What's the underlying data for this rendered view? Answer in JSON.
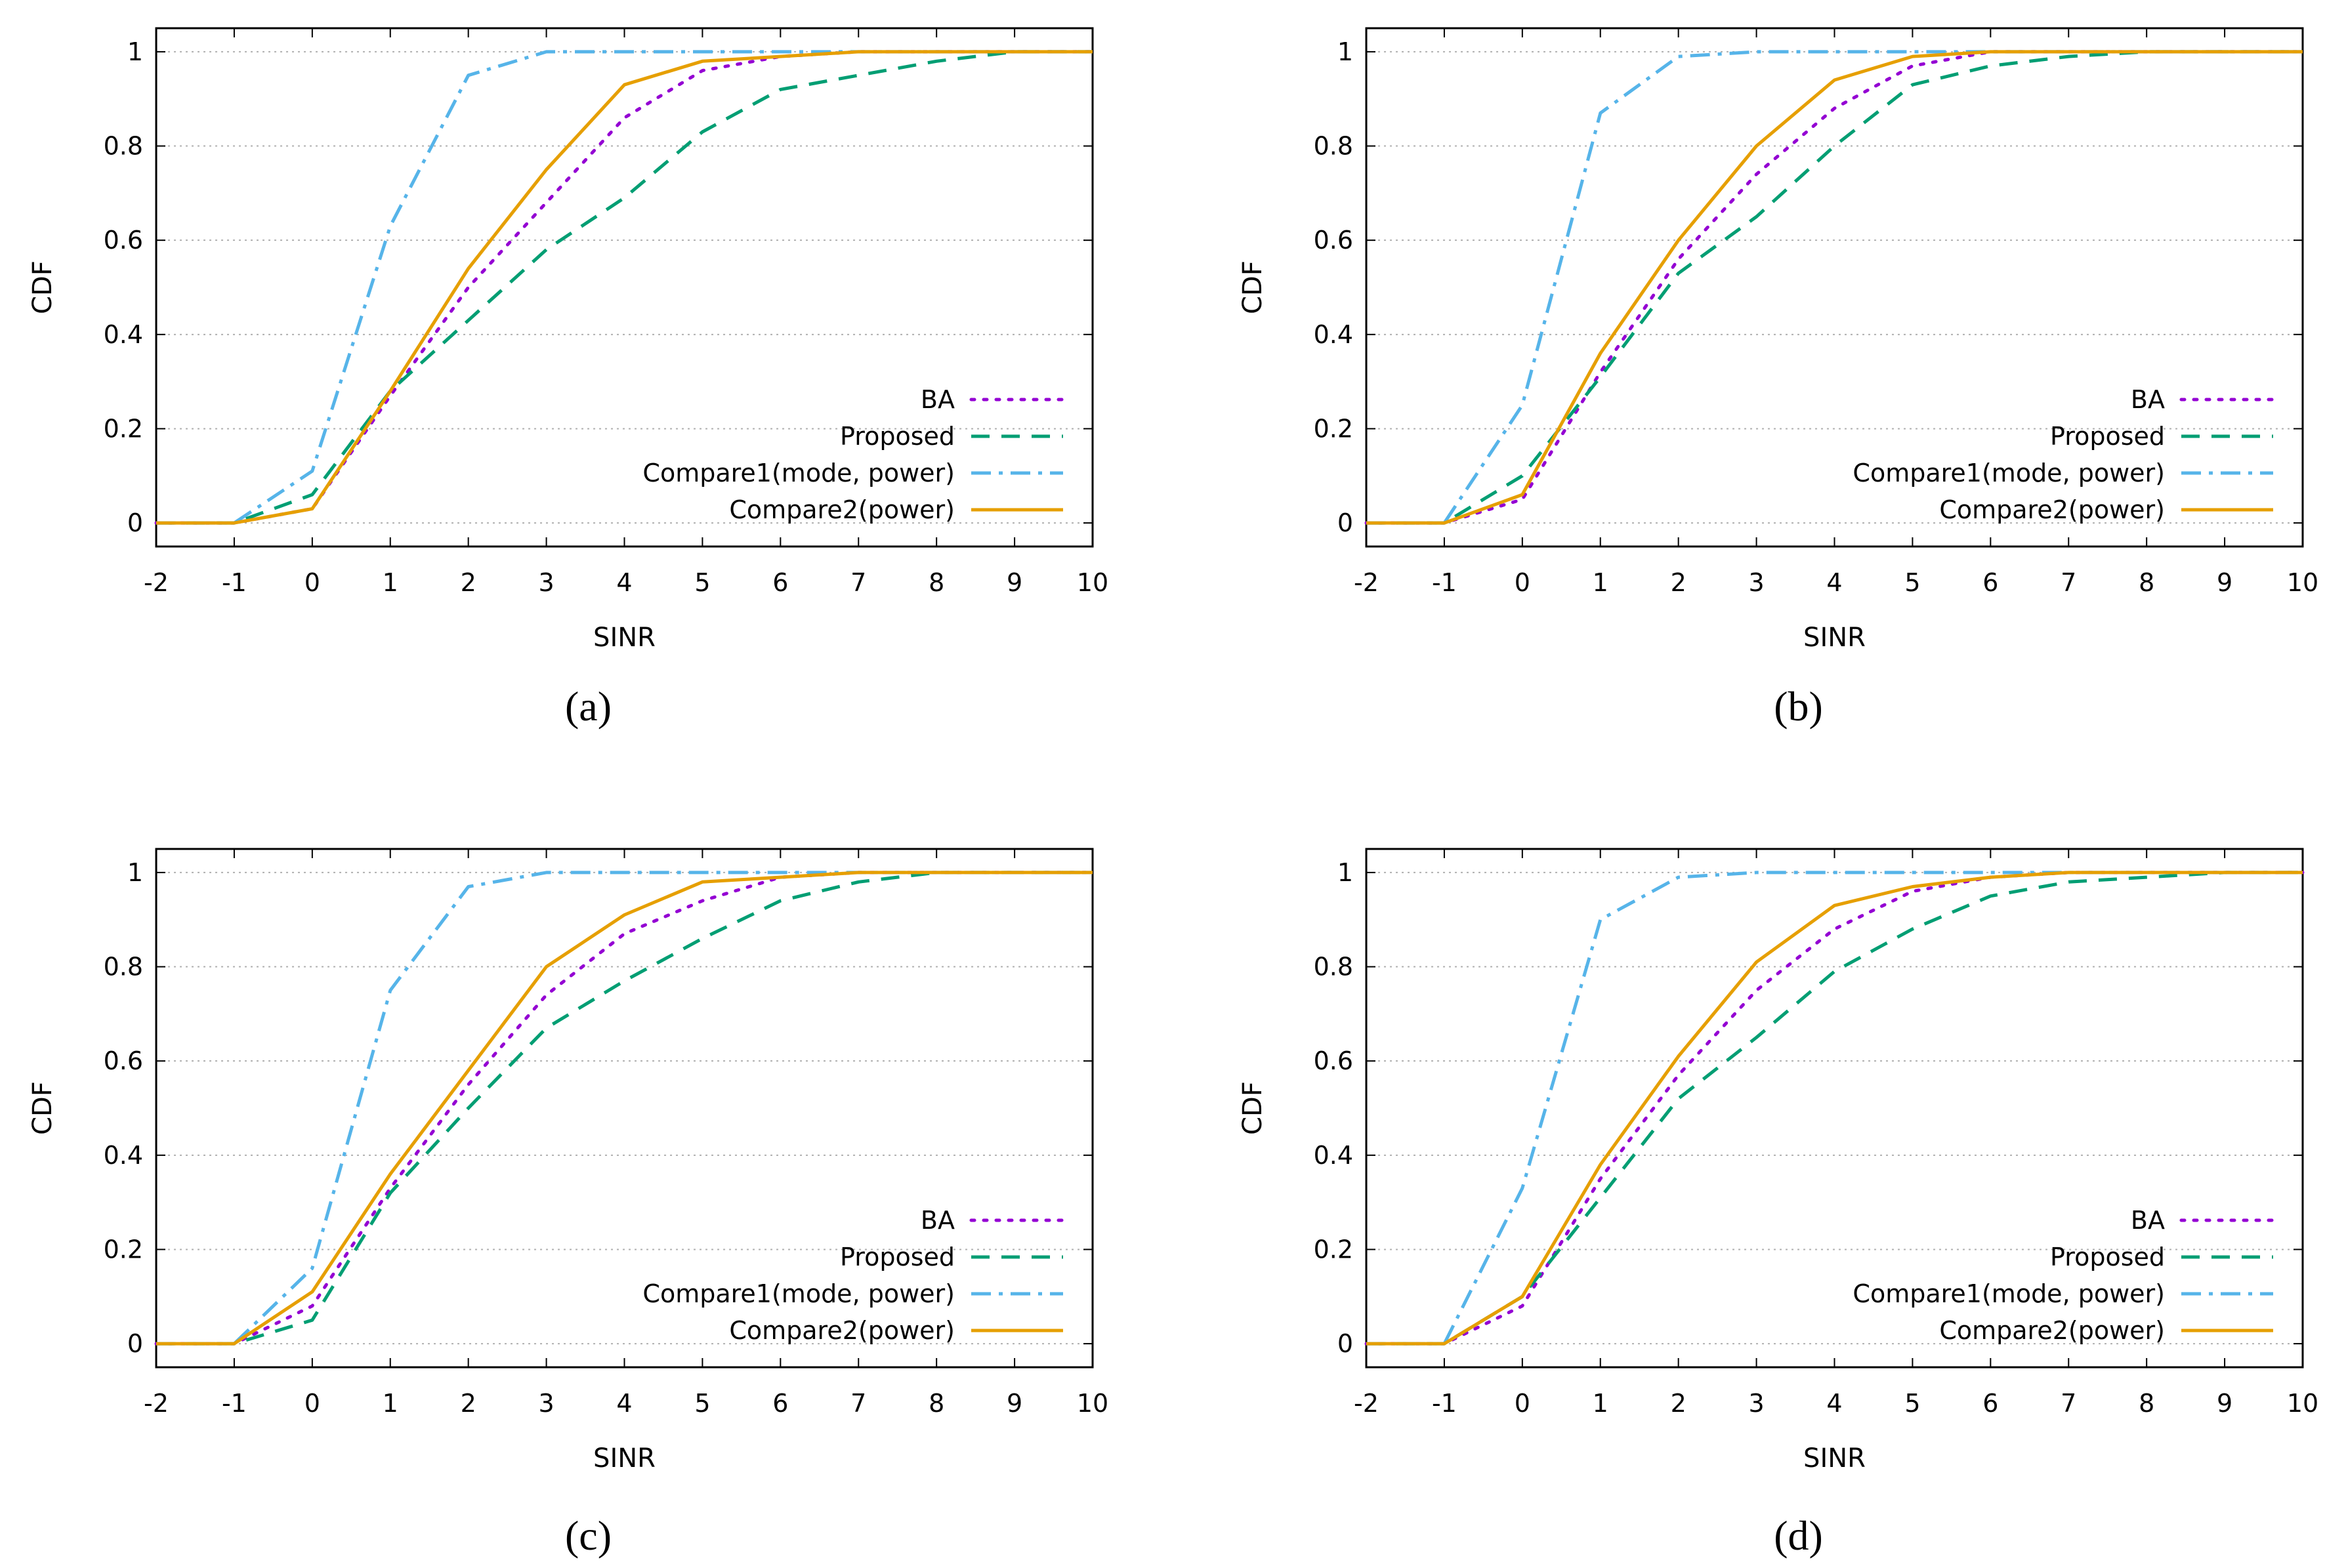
{
  "chart_data": [
    {
      "panel": "a",
      "caption": "(a)",
      "type": "line",
      "xlabel": "SINR",
      "ylabel": "CDF",
      "xlim": [
        -2,
        10
      ],
      "ylim": [
        -0.05,
        1.05
      ],
      "xticks": [
        "-2",
        "-1",
        "0",
        "1",
        "2",
        "3",
        "4",
        "5",
        "6",
        "7",
        "8",
        "9",
        "10"
      ],
      "yticks": [
        "0",
        "0.2",
        "0.4",
        "0.6",
        "0.8",
        "1"
      ],
      "grid": true,
      "legend": "bottom-right",
      "x": [
        -2,
        -1,
        0,
        1,
        2,
        3,
        4,
        5,
        6,
        7,
        8,
        9,
        10
      ],
      "series": [
        {
          "name": "BA",
          "values": [
            0,
            0,
            0.03,
            0.27,
            0.5,
            0.68,
            0.86,
            0.96,
            0.99,
            1,
            1,
            1,
            1
          ]
        },
        {
          "name": "Proposed",
          "values": [
            0,
            0,
            0.06,
            0.28,
            0.43,
            0.58,
            0.69,
            0.83,
            0.92,
            0.95,
            0.98,
            1,
            1
          ]
        },
        {
          "name": "Compare1(mode, power)",
          "values": [
            0,
            0,
            0.11,
            0.63,
            0.95,
            1,
            1,
            1,
            1,
            1,
            1,
            1,
            1
          ]
        },
        {
          "name": "Compare2(power)",
          "values": [
            0,
            0,
            0.03,
            0.28,
            0.54,
            0.75,
            0.93,
            0.98,
            0.99,
            1,
            1,
            1,
            1
          ]
        }
      ]
    },
    {
      "panel": "b",
      "caption": "(b)",
      "type": "line",
      "xlabel": "SINR",
      "ylabel": "CDF",
      "xlim": [
        -2,
        10
      ],
      "ylim": [
        -0.05,
        1.05
      ],
      "xticks": [
        "-2",
        "-1",
        "0",
        "1",
        "2",
        "3",
        "4",
        "5",
        "6",
        "7",
        "8",
        "9",
        "10"
      ],
      "yticks": [
        "0",
        "0.2",
        "0.4",
        "0.6",
        "0.8",
        "1"
      ],
      "grid": true,
      "legend": "bottom-right",
      "x": [
        -2,
        -1,
        0,
        1,
        2,
        3,
        4,
        5,
        6,
        7,
        8,
        9,
        10
      ],
      "series": [
        {
          "name": "BA",
          "values": [
            0,
            0,
            0.05,
            0.32,
            0.56,
            0.74,
            0.88,
            0.97,
            1,
            1,
            1,
            1,
            1
          ]
        },
        {
          "name": "Proposed",
          "values": [
            0,
            0,
            0.1,
            0.31,
            0.53,
            0.65,
            0.8,
            0.93,
            0.97,
            0.99,
            1,
            1,
            1
          ]
        },
        {
          "name": "Compare1(mode, power)",
          "values": [
            0,
            0,
            0.25,
            0.87,
            0.99,
            1,
            1,
            1,
            1,
            1,
            1,
            1,
            1
          ]
        },
        {
          "name": "Compare2(power)",
          "values": [
            0,
            0,
            0.06,
            0.36,
            0.6,
            0.8,
            0.94,
            0.99,
            1,
            1,
            1,
            1,
            1
          ]
        }
      ]
    },
    {
      "panel": "c",
      "caption": "(c)",
      "type": "line",
      "xlabel": "SINR",
      "ylabel": "CDF",
      "xlim": [
        -2,
        10
      ],
      "ylim": [
        -0.05,
        1.05
      ],
      "xticks": [
        "-2",
        "-1",
        "0",
        "1",
        "2",
        "3",
        "4",
        "5",
        "6",
        "7",
        "8",
        "9",
        "10"
      ],
      "yticks": [
        "0",
        "0.2",
        "0.4",
        "0.6",
        "0.8",
        "1"
      ],
      "grid": true,
      "legend": "bottom-right",
      "x": [
        -2,
        -1,
        0,
        1,
        2,
        3,
        4,
        5,
        6,
        7,
        8,
        9,
        10
      ],
      "series": [
        {
          "name": "BA",
          "values": [
            0,
            0,
            0.08,
            0.33,
            0.55,
            0.74,
            0.87,
            0.94,
            0.99,
            1,
            1,
            1,
            1
          ]
        },
        {
          "name": "Proposed",
          "values": [
            0,
            0,
            0.05,
            0.32,
            0.5,
            0.67,
            0.77,
            0.86,
            0.94,
            0.98,
            1,
            1,
            1
          ]
        },
        {
          "name": "Compare1(mode, power)",
          "values": [
            0,
            0,
            0.16,
            0.75,
            0.97,
            1,
            1,
            1,
            1,
            1,
            1,
            1,
            1
          ]
        },
        {
          "name": "Compare2(power)",
          "values": [
            0,
            0,
            0.11,
            0.36,
            0.58,
            0.8,
            0.91,
            0.98,
            0.99,
            1,
            1,
            1,
            1
          ]
        }
      ]
    },
    {
      "panel": "d",
      "caption": "(d)",
      "type": "line",
      "xlabel": "SINR",
      "ylabel": "CDF",
      "xlim": [
        -2,
        10
      ],
      "ylim": [
        -0.05,
        1.05
      ],
      "xticks": [
        "-2",
        "-1",
        "0",
        "1",
        "2",
        "3",
        "4",
        "5",
        "6",
        "7",
        "8",
        "9",
        "10"
      ],
      "yticks": [
        "0",
        "0.2",
        "0.4",
        "0.6",
        "0.8",
        "1"
      ],
      "grid": true,
      "legend": "bottom-right",
      "x": [
        -2,
        -1,
        0,
        1,
        2,
        3,
        4,
        5,
        6,
        7,
        8,
        9,
        10
      ],
      "series": [
        {
          "name": "BA",
          "values": [
            0,
            0,
            0.08,
            0.35,
            0.57,
            0.75,
            0.88,
            0.96,
            0.99,
            1,
            1,
            1,
            1
          ]
        },
        {
          "name": "Proposed",
          "values": [
            0,
            0,
            0.1,
            0.31,
            0.52,
            0.65,
            0.79,
            0.88,
            0.95,
            0.98,
            0.99,
            1,
            1
          ]
        },
        {
          "name": "Compare1(mode, power)",
          "values": [
            0,
            0,
            0.33,
            0.9,
            0.99,
            1,
            1,
            1,
            1,
            1,
            1,
            1,
            1
          ]
        },
        {
          "name": "Compare2(power)",
          "values": [
            0,
            0,
            0.1,
            0.38,
            0.61,
            0.81,
            0.93,
            0.97,
            0.99,
            1,
            1,
            1,
            1
          ]
        }
      ]
    }
  ],
  "series_colors": [
    "#9400d3",
    "#009e73",
    "#56b4e9",
    "#e69f00"
  ],
  "series_dash": [
    "dotted",
    "dashed",
    "dashdot",
    "solid"
  ]
}
